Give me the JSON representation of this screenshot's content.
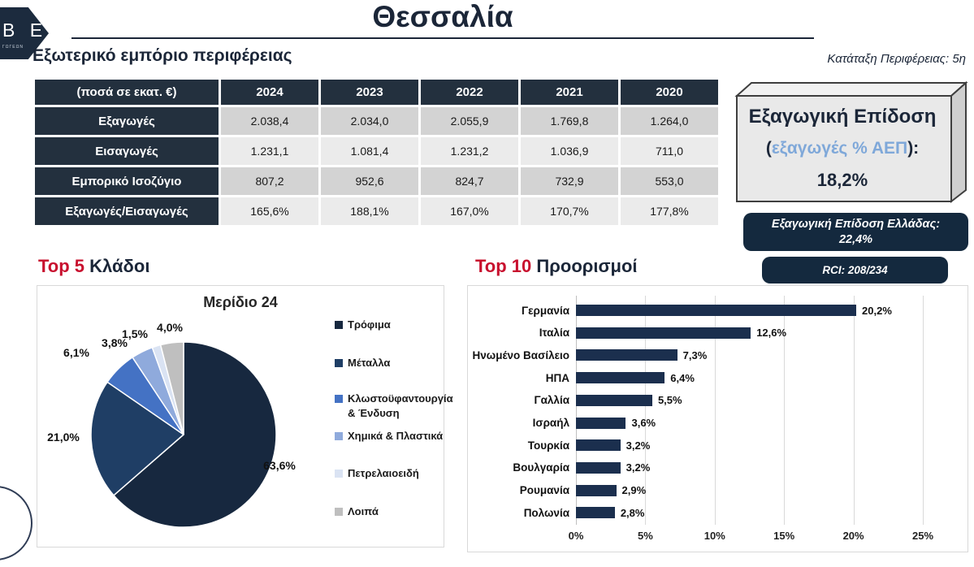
{
  "page": {
    "title": "Θεσσαλία",
    "section_title": "Εξωτερικό εμπόριο περιφέρειας",
    "region_rank": "Κατάταξη Περιφέρειας: 5η",
    "logo": {
      "text": "B E",
      "subtext": "ΓΩΓΕΩΝ"
    }
  },
  "trade_table": {
    "header": [
      "(ποσά σε εκατ. €)",
      "2024",
      "2023",
      "2022",
      "2021",
      "2020"
    ],
    "rows": [
      {
        "label": "Εξαγωγές",
        "values": [
          "2.038,4",
          "2.034,0",
          "2.055,9",
          "1.769,8",
          "1.264,0"
        ]
      },
      {
        "label": "Εισαγωγές",
        "values": [
          "1.231,1",
          "1.081,4",
          "1.231,2",
          "1.036,9",
          "711,0"
        ]
      },
      {
        "label": "Εμπορικό Ισοζύγιο",
        "values": [
          "807,2",
          "952,6",
          "824,7",
          "732,9",
          "553,0"
        ]
      },
      {
        "label": "Εξαγωγές/Εισαγωγές",
        "values": [
          "165,6%",
          "188,1%",
          "167,0%",
          "170,7%",
          "177,8%"
        ]
      }
    ]
  },
  "export_performance": {
    "title": "Εξαγωγική Επίδοση",
    "subtitle_open": "(",
    "subtitle_inner": "εξαγωγές % ΑΕΠ",
    "subtitle_close": "):",
    "value": "18,2%"
  },
  "greece_performance": {
    "label": "Εξαγωγική Επίδοση Ελλάδας:",
    "value": "22,4%"
  },
  "rci": "RCI: 208/234",
  "sectors_heading": {
    "highlight": "Top 5",
    "rest": "Κλάδοι"
  },
  "destinations_heading": {
    "highlight": "Top 10",
    "rest": "Προορισμοί"
  },
  "chart_data": [
    {
      "type": "pie",
      "title": "Μερίδιο 24",
      "labels": [
        "Τρόφιμα",
        "Μέταλλα",
        "Κλωστοϋφαντουργία & Ένδυση",
        "Χημικά & Πλαστικά",
        "Πετρελαιοειδή",
        "Λοιπά"
      ],
      "values": [
        63.6,
        21.0,
        6.1,
        3.8,
        1.5,
        4.0
      ],
      "value_labels": [
        "63,6%",
        "21,0%",
        "6,1%",
        "3,8%",
        "1,5%",
        "4,0%"
      ],
      "colors": [
        "#17283F",
        "#1F3E65",
        "#4472C4",
        "#8FAADC",
        "#DAE3F3",
        "#BFBFBF"
      ],
      "start_angle_deg": 0,
      "direction": "clockwise",
      "legend_position": "right"
    },
    {
      "type": "bar",
      "orientation": "horizontal",
      "categories": [
        "Γερμανία",
        "Ιταλία",
        "Ηνωμένο Βασίλειο",
        "ΗΠΑ",
        "Γαλλία",
        "Ισραήλ",
        "Τουρκία",
        "Βουλγαρία",
        "Ρουμανία",
        "Πολωνία"
      ],
      "values": [
        20.2,
        12.6,
        7.3,
        6.4,
        5.5,
        3.6,
        3.2,
        3.2,
        2.9,
        2.8
      ],
      "value_labels": [
        "20,2%",
        "12,6%",
        "7,3%",
        "6,4%",
        "5,5%",
        "3,6%",
        "3,2%",
        "3,2%",
        "2,9%",
        "2,8%"
      ],
      "xlim": [
        0,
        25
      ],
      "x_ticks": [
        "0%",
        "5%",
        "10%",
        "15%",
        "20%",
        "25%"
      ],
      "bar_color": "#1B2F4E",
      "grid": true
    }
  ],
  "colors": {
    "navy": "#1B2638",
    "table_dark": "#23303E",
    "pill_bg": "#14293E",
    "accent_red": "#C8102E",
    "light_blue_text": "#7FA8D9",
    "row_odd": "#D3D3D3",
    "row_even": "#EBEBEB",
    "gridline": "#D9D9D9"
  }
}
